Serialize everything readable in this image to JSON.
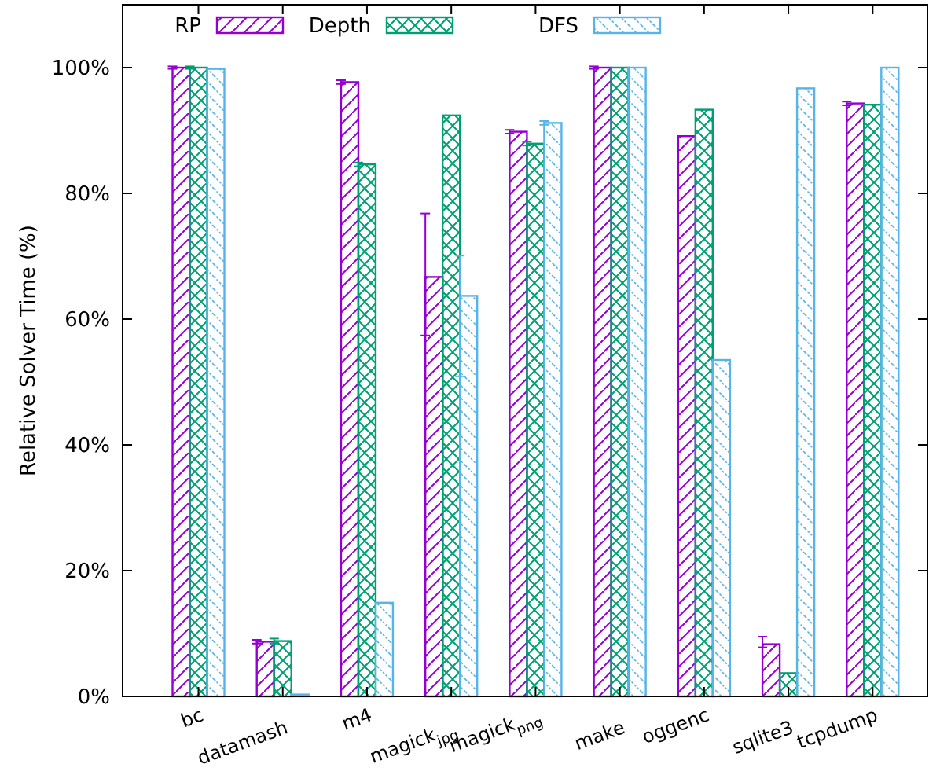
{
  "chart_data": {
    "type": "bar",
    "ylabel": "Relative Solver Time (%)",
    "categories": [
      "bc",
      "datamash",
      "m4",
      "magick$_{jpg}$",
      "magick$_{png}$",
      "make",
      "oggenc",
      "sqlite3",
      "tcpdump"
    ],
    "series": [
      {
        "name": "RP",
        "color": "#9400d3",
        "values": [
          100,
          8.7,
          97.7,
          66.7,
          89.8,
          100,
          89.1,
          8.3,
          94.3
        ],
        "errors": [
          0.2,
          0.3,
          0.3,
          [
            57.4,
            76.8
          ],
          0.3,
          0.2,
          null,
          [
            7.8,
            9.5
          ],
          0.3
        ]
      },
      {
        "name": "Depth",
        "color": "#009e73",
        "values": [
          100,
          8.8,
          84.6,
          92.4,
          87.9,
          100,
          93.3,
          3.7,
          94.1
        ],
        "errors": [
          0.2,
          0.4,
          0.3,
          null,
          0.3,
          null,
          null,
          null,
          null
        ]
      },
      {
        "name": "DFS",
        "color": "#56b4e9",
        "values": [
          99.8,
          0.3,
          14.9,
          63.7,
          91.2,
          100,
          53.5,
          96.7,
          100
        ],
        "errors": [
          null,
          null,
          null,
          [
            50.9,
            70.1
          ],
          0.3,
          null,
          null,
          null,
          null
        ]
      }
    ],
    "ylim": [
      0,
      110
    ],
    "yticks": [
      {
        "value": 0,
        "label": "0%"
      },
      {
        "value": 20,
        "label": "20%"
      },
      {
        "value": 40,
        "label": "40%"
      },
      {
        "value": 60,
        "label": "60%"
      },
      {
        "value": 80,
        "label": "80%"
      },
      {
        "value": 100,
        "label": "100%"
      }
    ],
    "legend": "top left",
    "grid": false
  }
}
